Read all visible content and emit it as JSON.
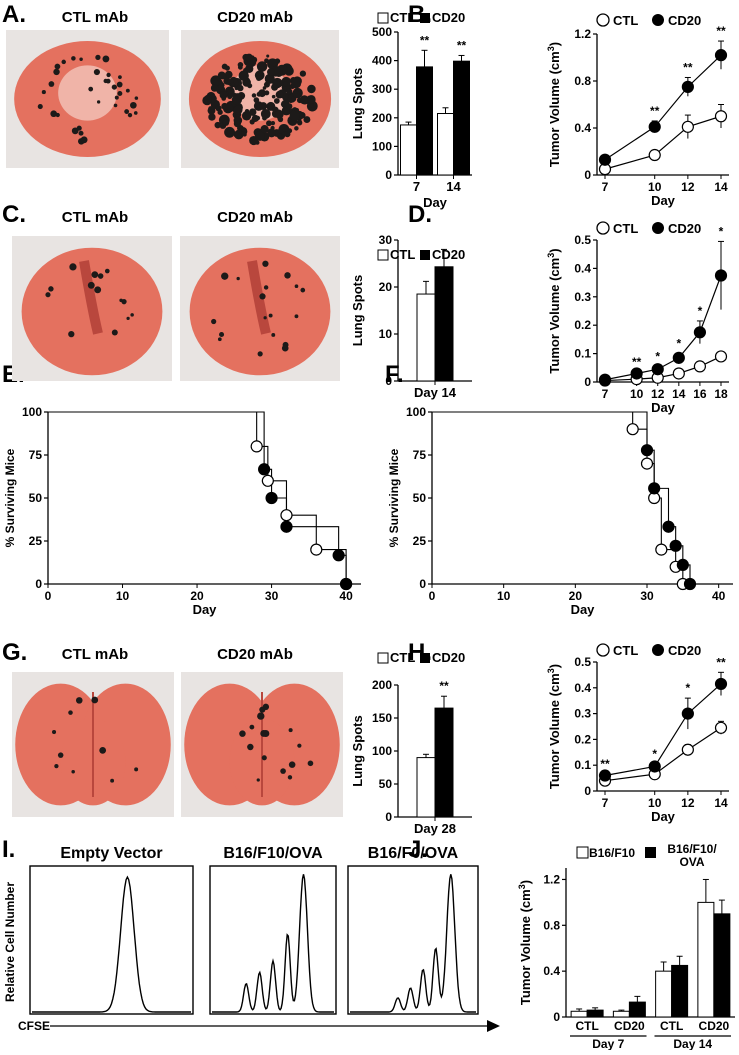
{
  "panel_letters": [
    "A.",
    "B.",
    "C.",
    "D.",
    "E.",
    "F.",
    "G.",
    "H.",
    "I.",
    "J."
  ],
  "photo_labels": {
    "A": [
      "CTL mAb",
      "CD20 mAb"
    ],
    "C": [
      "CTL mAb",
      "CD20 mAb"
    ],
    "G": [
      "CTL mAb",
      "CD20 mAb"
    ]
  },
  "legend_ctl": "CTL",
  "legend_cd20": "CD20",
  "legend_j": [
    "B16/F10",
    "B16/F10/",
    "OVA"
  ],
  "superscript": "3",
  "colors": {
    "lung": "#e4715f",
    "lung_dark": "#b9473d",
    "tumor_spot": "#1d1a19",
    "background_photo": "#e8e4e2"
  },
  "flow_titles": [
    "Empty Vector",
    "B16/F10/OVA",
    "B16/F0/OVA"
  ],
  "flow_ylabel": "Relative Cell Number",
  "flow_xlabel": "CFSE",
  "chart_data": [
    {
      "panel": "A",
      "type": "bar",
      "ylabel": "Lung Spots",
      "xlabel": "Day",
      "categories": [
        "7",
        "14"
      ],
      "series": [
        {
          "name": "CTL",
          "values": [
            175,
            215
          ],
          "errors": [
            10,
            20
          ]
        },
        {
          "name": "CD20",
          "values": [
            378,
            398
          ],
          "errors": [
            58,
            20
          ]
        }
      ],
      "ylim": [
        0,
        500
      ],
      "yticks": [
        "0",
        "100",
        "200",
        "300",
        "400",
        "500"
      ],
      "annotations": [
        "**",
        "**"
      ]
    },
    {
      "panel": "B",
      "type": "line",
      "ylabel": "Tumor Volume (cm",
      "xlabel": "Day",
      "x": [
        7,
        10,
        12,
        14
      ],
      "xticks": [
        "7",
        "10",
        "12",
        "14"
      ],
      "series": [
        {
          "name": "CTL",
          "values": [
            0.05,
            0.17,
            0.41,
            0.5
          ],
          "errors": [
            0.03,
            0.03,
            0.1,
            0.1
          ]
        },
        {
          "name": "CD20",
          "values": [
            0.13,
            0.41,
            0.75,
            1.02
          ],
          "errors": [
            0.03,
            0.05,
            0.08,
            0.12
          ]
        }
      ],
      "ylim": [
        0,
        1.2
      ],
      "yticks": [
        "0",
        "0.4",
        "0.8",
        "1.2"
      ],
      "annotations": [
        "**",
        "**",
        "**"
      ]
    },
    {
      "panel": "C",
      "type": "bar",
      "ylabel": "Lung Spots",
      "categories": [
        "Day 14"
      ],
      "series": [
        {
          "name": "CTL",
          "values": [
            18.5
          ],
          "errors": [
            2.7
          ]
        },
        {
          "name": "CD20",
          "values": [
            24.3
          ],
          "errors": [
            3.7
          ]
        }
      ],
      "ylim": [
        0,
        30
      ],
      "yticks": [
        "0",
        "10",
        "20",
        "30"
      ]
    },
    {
      "panel": "D",
      "type": "line",
      "ylabel": "Tumor Volume (cm",
      "xlabel": "Day",
      "x": [
        7,
        10,
        12,
        14,
        16,
        18
      ],
      "xticks": [
        "7",
        "10",
        "12",
        "14",
        "16",
        "18"
      ],
      "series": [
        {
          "name": "CTL",
          "values": [
            0.005,
            0.01,
            0.015,
            0.03,
            0.055,
            0.09
          ],
          "errors": [
            0,
            0,
            0.005,
            0.005,
            0.01,
            0.015
          ]
        },
        {
          "name": "CD20",
          "values": [
            0.008,
            0.03,
            0.045,
            0.085,
            0.175,
            0.375
          ],
          "errors": [
            0,
            0.005,
            0.01,
            0.015,
            0.04,
            0.12
          ]
        }
      ],
      "ylim": [
        0,
        0.5
      ],
      "yticks": [
        "0",
        "0.1",
        "0.2",
        "0.3",
        "0.4",
        "0.5"
      ],
      "annotations": [
        "**",
        "*",
        "*",
        "*",
        "*"
      ]
    },
    {
      "panel": "E",
      "type": "line",
      "ylabel": "% Surviving Mice",
      "xlabel": "Day",
      "xlim": [
        0,
        42
      ],
      "xticks": [
        "0",
        "10",
        "20",
        "30",
        "40"
      ],
      "ylim": [
        0,
        100
      ],
      "yticks": [
        "0",
        "25",
        "50",
        "75",
        "100"
      ],
      "series": [
        {
          "name": "CTL",
          "x": [
            28,
            29.5,
            32,
            36,
            40
          ],
          "values": [
            80,
            60,
            40,
            20,
            0
          ]
        },
        {
          "name": "CD20",
          "x": [
            29,
            30,
            32,
            39,
            40
          ],
          "values": [
            66.7,
            50,
            33.3,
            16.7,
            0
          ]
        }
      ]
    },
    {
      "panel": "F",
      "type": "line",
      "ylabel": "% Surviving Mice",
      "xlabel": "Day",
      "xlim": [
        0,
        42
      ],
      "xticks": [
        "0",
        "10",
        "20",
        "30",
        "40"
      ],
      "ylim": [
        0,
        100
      ],
      "yticks": [
        "0",
        "25",
        "50",
        "75",
        "100"
      ],
      "series": [
        {
          "name": "CTL",
          "x": [
            28,
            30,
            31,
            32,
            34,
            35
          ],
          "values": [
            90,
            70,
            50,
            20,
            10,
            0
          ]
        },
        {
          "name": "CD20",
          "x": [
            30,
            31,
            33,
            34,
            35,
            36
          ],
          "values": [
            77.8,
            55.6,
            33.3,
            22.2,
            11.1,
            0
          ]
        }
      ]
    },
    {
      "panel": "G",
      "type": "bar",
      "ylabel": "Lung Spots",
      "categories": [
        "Day 28"
      ],
      "series": [
        {
          "name": "CTL",
          "values": [
            90
          ],
          "errors": [
            5
          ]
        },
        {
          "name": "CD20",
          "values": [
            165
          ],
          "errors": [
            18
          ]
        }
      ],
      "ylim": [
        0,
        200
      ],
      "yticks": [
        "0",
        "50",
        "100",
        "150",
        "200"
      ],
      "annotations": [
        "**"
      ]
    },
    {
      "panel": "H",
      "type": "line",
      "ylabel": "Tumor Volume (cm",
      "xlabel": "Day",
      "x": [
        7,
        10,
        12,
        14
      ],
      "xticks": [
        "7",
        "10",
        "12",
        "14"
      ],
      "series": [
        {
          "name": "CTL",
          "values": [
            0.04,
            0.065,
            0.16,
            0.245
          ],
          "errors": [
            0.005,
            0.01,
            0.02,
            0.025
          ]
        },
        {
          "name": "CD20",
          "values": [
            0.06,
            0.095,
            0.3,
            0.415
          ],
          "errors": [
            0.005,
            0.01,
            0.06,
            0.045
          ]
        }
      ],
      "ylim": [
        0,
        0.5
      ],
      "yticks": [
        "0",
        "0.1",
        "0.2",
        "0.3",
        "0.4",
        "0.5"
      ],
      "annotations": [
        "**",
        "*",
        "*",
        "**"
      ]
    },
    {
      "panel": "J",
      "type": "bar",
      "ylabel": "Tumor Volume (cm",
      "categories": [
        "CTL",
        "CD20",
        "CTL",
        "CD20"
      ],
      "groups": [
        "Day 7",
        "Day 14"
      ],
      "series": [
        {
          "name": "B16/F10",
          "values": [
            0.05,
            0.05,
            0.4,
            1.0
          ],
          "errors": [
            0.02,
            0.01,
            0.08,
            0.2
          ]
        },
        {
          "name": "B16/F10/OVA",
          "values": [
            0.06,
            0.13,
            0.45,
            0.9
          ],
          "errors": [
            0.02,
            0.05,
            0.08,
            0.12
          ]
        }
      ],
      "ylim": [
        0,
        1.3
      ],
      "yticks": [
        "0",
        "0.4",
        "0.8",
        "1.2"
      ]
    }
  ]
}
